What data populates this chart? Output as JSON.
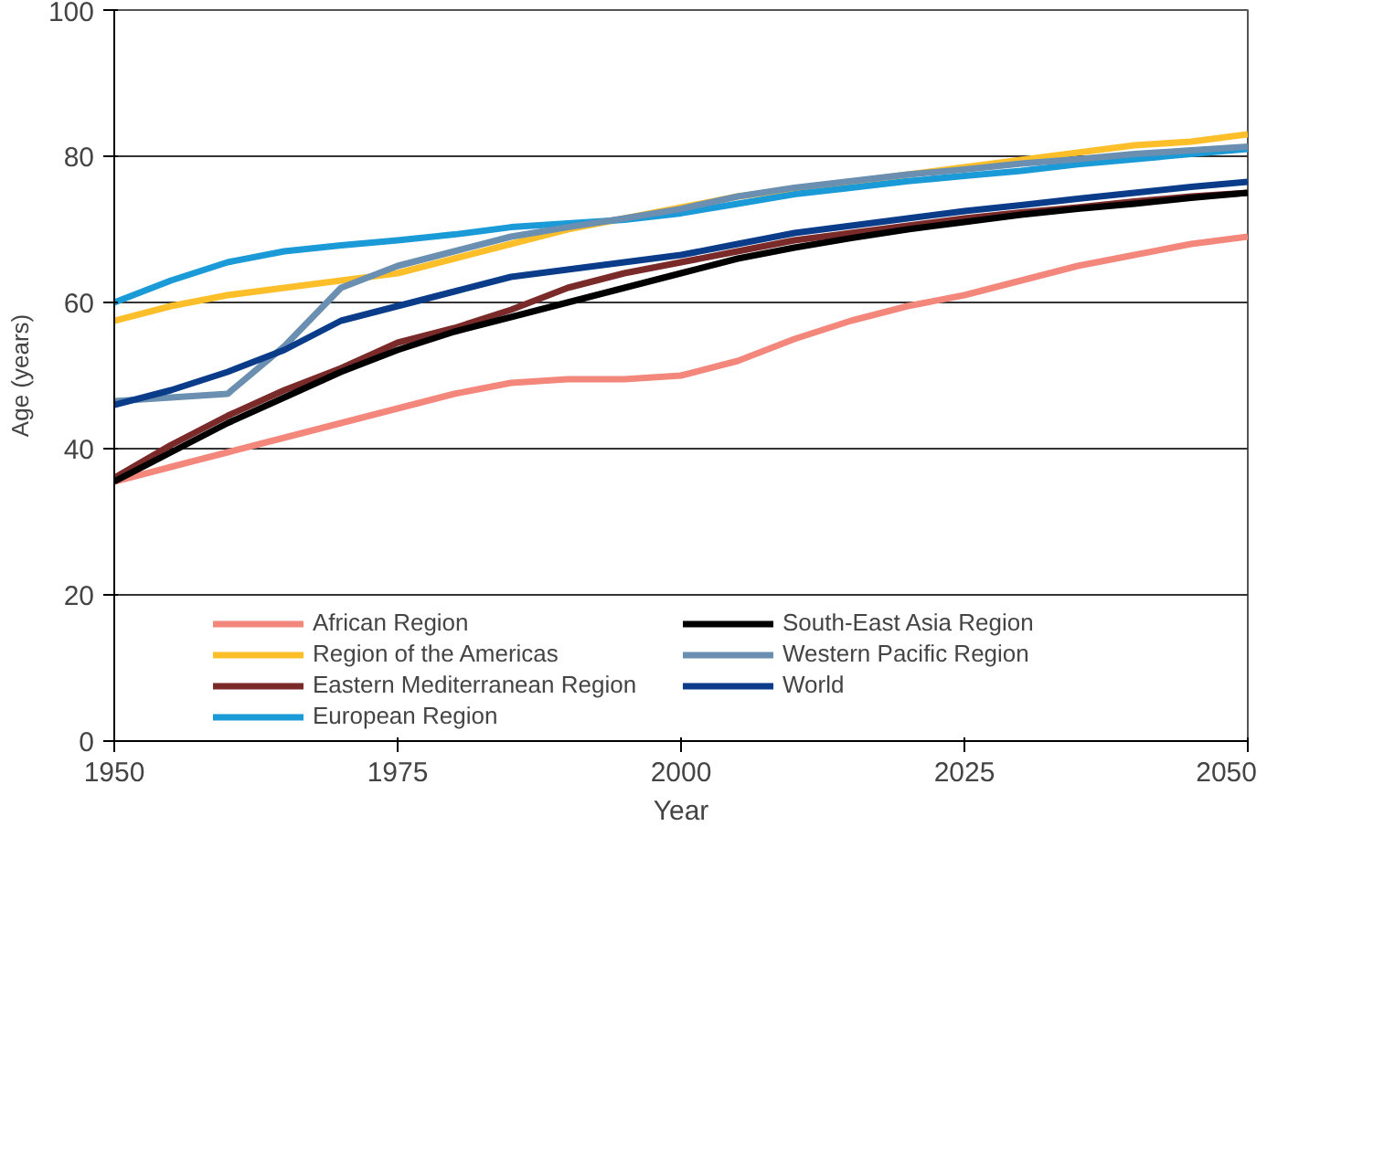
{
  "chart_data": {
    "type": "line",
    "xlabel": "Year",
    "ylabel": "Age (years)",
    "x": [
      1950,
      1955,
      1960,
      1965,
      1970,
      1975,
      1980,
      1985,
      1990,
      1995,
      2000,
      2005,
      2010,
      2015,
      2020,
      2025,
      2030,
      2035,
      2040,
      2045,
      2050
    ],
    "xlim": [
      1950,
      2050
    ],
    "xticks": [
      1950,
      1975,
      2000,
      2025,
      2050
    ],
    "ylim": [
      0,
      100
    ],
    "yticks": [
      0,
      20,
      40,
      60,
      80,
      100
    ],
    "grid": "y",
    "legend": "bottom",
    "line_style": "solid",
    "series": [
      {
        "name": "African Region",
        "color": "#f4877c",
        "values": [
          35.5,
          37.5,
          39.5,
          41.5,
          43.5,
          45.5,
          47.5,
          49,
          49.5,
          49.5,
          50,
          52,
          55,
          57.5,
          59.5,
          61,
          63,
          65,
          66.5,
          68,
          69
        ]
      },
      {
        "name": "Region of the Americas",
        "color": "#fcbf2a",
        "values": [
          57.5,
          59.5,
          61,
          62,
          63,
          64,
          66,
          68,
          70,
          71.5,
          73,
          74.5,
          75.5,
          76.5,
          77.5,
          78.5,
          79.5,
          80.5,
          81.5,
          82,
          83
        ]
      },
      {
        "name": "Eastern Mediterranean Region",
        "color": "#7b2a2a",
        "values": [
          36,
          40.5,
          44.5,
          48,
          51,
          54.5,
          56.5,
          59,
          62,
          64,
          65.5,
          67,
          68.5,
          69.5,
          70.5,
          71.5,
          72.3,
          73,
          73.8,
          74.5,
          75
        ]
      },
      {
        "name": "European Region",
        "color": "#1a9ad6",
        "values": [
          60,
          63,
          65.5,
          67,
          67.8,
          68.5,
          69.3,
          70.3,
          70.8,
          71.3,
          72.2,
          73.5,
          74.8,
          75.7,
          76.6,
          77.3,
          78,
          78.9,
          79.6,
          80.3,
          81
        ]
      },
      {
        "name": "South-East Asia Region",
        "color": "#000000",
        "values": [
          35.5,
          39.5,
          43.5,
          47,
          50.5,
          53.5,
          56,
          58,
          60,
          62,
          64,
          66,
          67.5,
          68.8,
          70,
          71,
          72,
          72.8,
          73.5,
          74.3,
          75
        ]
      },
      {
        "name": "Western Pacific Region",
        "color": "#6a8fb0",
        "values": [
          46.5,
          47,
          47.5,
          54,
          62,
          65,
          67,
          69,
          70.3,
          71.5,
          72.8,
          74.5,
          75.7,
          76.6,
          77.5,
          78.2,
          79,
          79.6,
          80.3,
          80.8,
          81.3
        ]
      },
      {
        "name": "World",
        "color": "#0a3c8a",
        "values": [
          46,
          48,
          50.5,
          53.5,
          57.5,
          59.5,
          61.5,
          63.5,
          64.5,
          65.5,
          66.5,
          68,
          69.5,
          70.5,
          71.5,
          72.5,
          73.3,
          74.2,
          75,
          75.8,
          76.5
        ]
      }
    ]
  }
}
